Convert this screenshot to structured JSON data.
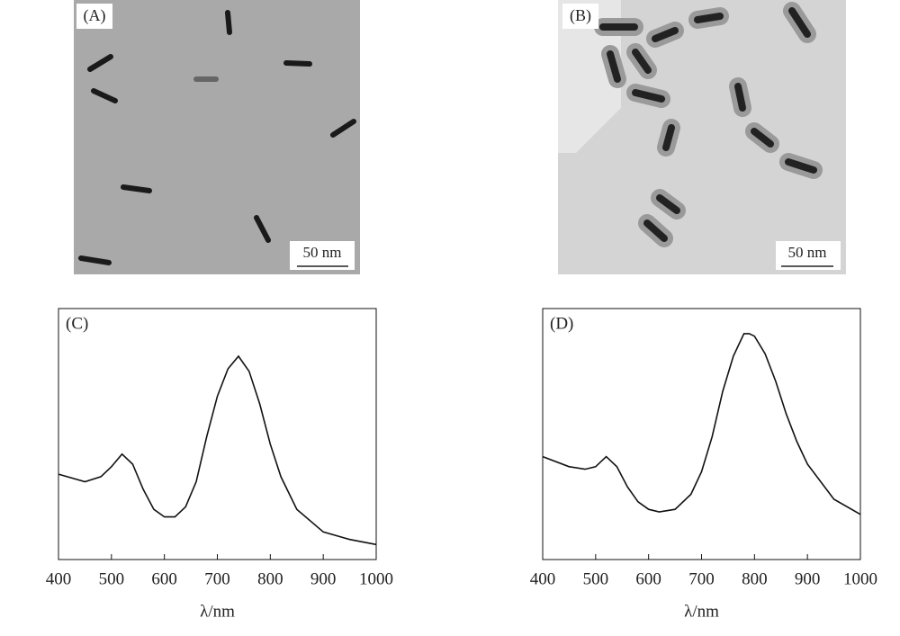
{
  "images": [
    {
      "label": "(A)",
      "scale_bar": "50 nm"
    },
    {
      "label": "(B)",
      "scale_bar": "50 nm"
    }
  ],
  "chart_data": [
    {
      "type": "line",
      "label": "(C)",
      "x_label": "λ/nm",
      "color": "#111",
      "x": [
        400,
        450,
        480,
        500,
        520,
        540,
        560,
        580,
        600,
        620,
        640,
        660,
        680,
        700,
        720,
        740,
        760,
        780,
        800,
        820,
        850,
        900,
        950,
        1000
      ],
      "values": [
        0.34,
        0.31,
        0.33,
        0.37,
        0.42,
        0.38,
        0.28,
        0.2,
        0.17,
        0.17,
        0.21,
        0.31,
        0.49,
        0.65,
        0.76,
        0.81,
        0.75,
        0.62,
        0.46,
        0.33,
        0.2,
        0.11,
        0.08,
        0.06
      ],
      "xlim": [
        400,
        1000
      ],
      "ylim": [
        0,
        1
      ],
      "xticks": [
        400,
        500,
        600,
        700,
        800,
        900,
        1000
      ]
    },
    {
      "type": "line",
      "label": "(D)",
      "x_label": "λ/nm",
      "color": "#111",
      "x": [
        400,
        450,
        480,
        500,
        520,
        540,
        560,
        580,
        600,
        620,
        650,
        680,
        700,
        720,
        740,
        760,
        780,
        790,
        800,
        820,
        840,
        860,
        880,
        900,
        950,
        1000
      ],
      "values": [
        0.41,
        0.37,
        0.36,
        0.37,
        0.41,
        0.37,
        0.29,
        0.23,
        0.2,
        0.19,
        0.2,
        0.26,
        0.35,
        0.49,
        0.67,
        0.81,
        0.9,
        0.9,
        0.89,
        0.82,
        0.71,
        0.58,
        0.47,
        0.38,
        0.24,
        0.18
      ],
      "xlim": [
        400,
        1000
      ],
      "ylim": [
        0,
        1
      ],
      "xticks": [
        400,
        500,
        600,
        700,
        800,
        900,
        1000
      ]
    }
  ]
}
